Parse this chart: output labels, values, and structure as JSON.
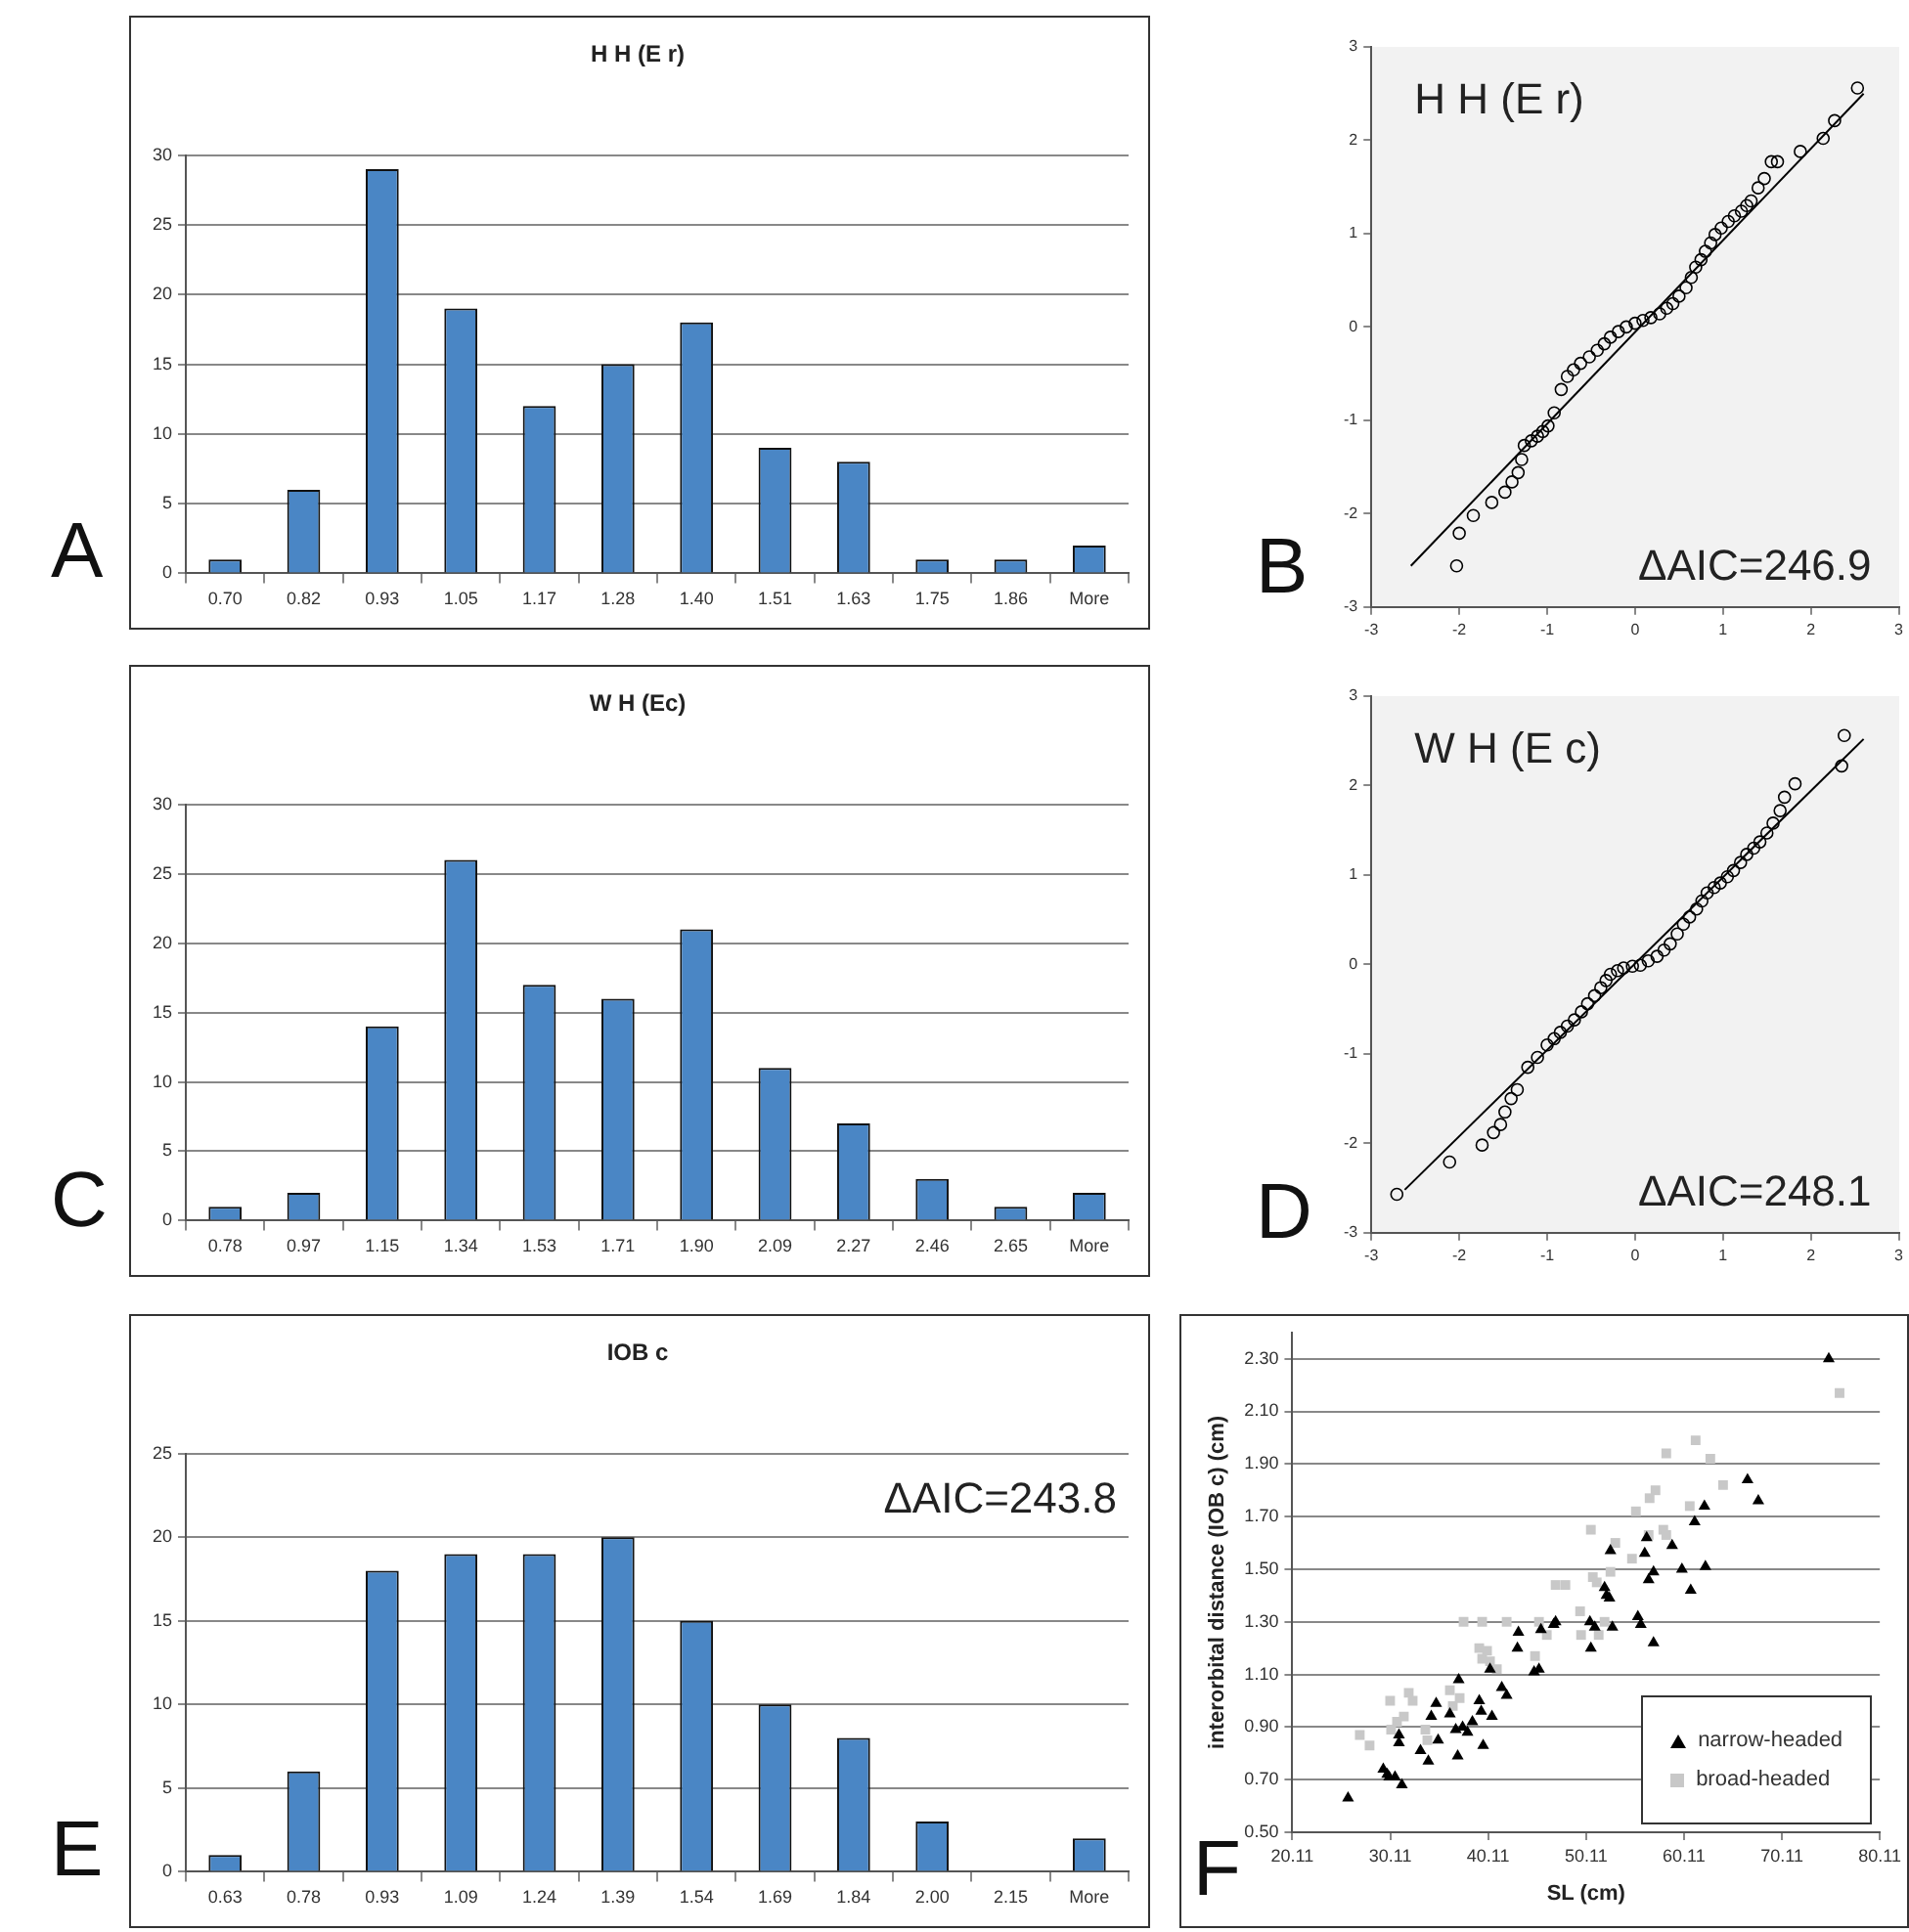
{
  "chart_data": [
    {
      "type": "bar",
      "title": "H H (E r)",
      "categories": [
        "0.70",
        "0.82",
        "0.93",
        "1.05",
        "1.17",
        "1.28",
        "1.40",
        "1.51",
        "1.63",
        "1.75",
        "1.86",
        "More"
      ],
      "values": [
        1,
        6,
        29,
        19,
        12,
        15,
        18,
        9,
        8,
        1,
        1,
        2
      ],
      "color": "#4a86c5",
      "ylim": [
        0,
        30
      ],
      "yticks": [
        0,
        5,
        10,
        15,
        20,
        25,
        30
      ],
      "grid": "y",
      "annotations": [
        "A"
      ]
    },
    {
      "type": "scatter",
      "title": "H H (E r)",
      "grid": false,
      "xlim": [
        -3,
        3
      ],
      "ylim": [
        -3,
        3
      ],
      "xticks": [
        -3,
        -2,
        -1,
        0,
        1,
        2,
        3
      ],
      "yticks": [
        -3,
        -2,
        -1,
        0,
        1,
        2,
        3
      ],
      "annotations": [
        "B",
        "ΔAIC=246.9"
      ],
      "series": [
        {
          "type": "scatter",
          "color": "#000000",
          "marker": "circle",
          "x": [
            -2.03,
            -2.0,
            -1.84,
            -1.63,
            -1.48,
            -1.4,
            -1.33,
            -1.29,
            -1.26,
            -1.18,
            -1.11,
            -1.05,
            -0.99,
            -0.92,
            -0.84,
            -0.77,
            -0.7,
            -0.62,
            -0.52,
            -0.43,
            -0.35,
            -0.28,
            -0.19,
            -0.1,
            0.0,
            0.09,
            0.18,
            0.28,
            0.36,
            0.43,
            0.5,
            0.58,
            0.64,
            0.69,
            0.75,
            0.8,
            0.86,
            0.91,
            0.98,
            1.06,
            1.13,
            1.21,
            1.27,
            1.32,
            1.4,
            1.47,
            1.55,
            1.62,
            1.88,
            2.14,
            2.27,
            2.53
          ],
          "values": [
            -2.56,
            -2.21,
            -2.02,
            -1.88,
            -1.77,
            -1.66,
            -1.56,
            -1.42,
            -1.27,
            -1.22,
            -1.17,
            -1.12,
            -1.06,
            -0.92,
            -0.67,
            -0.53,
            -0.46,
            -0.39,
            -0.32,
            -0.25,
            -0.18,
            -0.11,
            -0.05,
            0.0,
            0.04,
            0.07,
            0.1,
            0.14,
            0.2,
            0.25,
            0.33,
            0.42,
            0.53,
            0.64,
            0.72,
            0.81,
            0.9,
            0.99,
            1.06,
            1.13,
            1.19,
            1.24,
            1.3,
            1.35,
            1.49,
            1.59,
            1.77,
            1.77,
            1.88,
            2.02,
            2.21,
            2.56
          ]
        },
        {
          "type": "line",
          "color": "#000000",
          "marker": "none",
          "x": [
            -2.55,
            2.6
          ],
          "values": [
            -2.56,
            2.5
          ]
        }
      ]
    },
    {
      "type": "bar",
      "title": "W H (Ec)",
      "categories": [
        "0.78",
        "0.97",
        "1.15",
        "1.34",
        "1.53",
        "1.71",
        "1.90",
        "2.09",
        "2.27",
        "2.46",
        "2.65",
        "More"
      ],
      "values": [
        1,
        2,
        14,
        26,
        17,
        16,
        21,
        11,
        7,
        3,
        1,
        2
      ],
      "color": "#4a86c5",
      "ylim": [
        0,
        30
      ],
      "yticks": [
        0,
        5,
        10,
        15,
        20,
        25,
        30
      ],
      "grid": "y",
      "annotations": [
        "C"
      ]
    },
    {
      "type": "scatter",
      "title": "W H (E c)",
      "grid": false,
      "xlim": [
        -3,
        3
      ],
      "ylim": [
        -3,
        3
      ],
      "xticks": [
        -3,
        -2,
        -1,
        0,
        1,
        2,
        3
      ],
      "yticks": [
        -3,
        -2,
        -1,
        0,
        1,
        2,
        3
      ],
      "annotations": [
        "D",
        "ΔAIC=248.1"
      ],
      "series": [
        {
          "type": "scatter",
          "color": "#000000",
          "marker": "circle",
          "x": [
            -2.71,
            -2.11,
            -1.74,
            -1.61,
            -1.53,
            -1.48,
            -1.41,
            -1.34,
            -1.22,
            -1.11,
            -1.0,
            -0.92,
            -0.85,
            -0.77,
            -0.69,
            -0.61,
            -0.54,
            -0.46,
            -0.39,
            -0.33,
            -0.28,
            -0.2,
            -0.13,
            -0.03,
            0.06,
            0.15,
            0.25,
            0.33,
            0.4,
            0.48,
            0.55,
            0.62,
            0.7,
            0.76,
            0.82,
            0.9,
            0.97,
            1.05,
            1.12,
            1.2,
            1.27,
            1.35,
            1.42,
            1.5,
            1.57,
            1.65,
            1.7,
            1.82,
            2.35,
            2.38
          ],
          "values": [
            -2.57,
            -2.21,
            -2.02,
            -1.88,
            -1.79,
            -1.65,
            -1.5,
            -1.4,
            -1.15,
            -1.04,
            -0.9,
            -0.83,
            -0.76,
            -0.69,
            -0.62,
            -0.53,
            -0.44,
            -0.35,
            -0.26,
            -0.18,
            -0.11,
            -0.07,
            -0.04,
            -0.02,
            -0.01,
            0.04,
            0.09,
            0.16,
            0.23,
            0.34,
            0.45,
            0.53,
            0.62,
            0.71,
            0.8,
            0.86,
            0.91,
            0.98,
            1.05,
            1.14,
            1.23,
            1.3,
            1.37,
            1.47,
            1.58,
            1.72,
            1.87,
            2.02,
            2.22,
            2.56
          ]
        },
        {
          "type": "line",
          "color": "#000000",
          "marker": "none",
          "x": [
            -2.62,
            2.6
          ],
          "values": [
            -2.52,
            2.52
          ]
        }
      ]
    },
    {
      "type": "bar",
      "title": "IOB c",
      "categories": [
        "0.63",
        "0.78",
        "0.93",
        "1.09",
        "1.24",
        "1.39",
        "1.54",
        "1.69",
        "1.84",
        "2.00",
        "2.15",
        "More"
      ],
      "values": [
        1,
        6,
        18,
        19,
        19,
        20,
        15,
        10,
        8,
        3,
        0,
        2
      ],
      "color": "#4a86c5",
      "ylim": [
        0,
        25
      ],
      "yticks": [
        0,
        5,
        10,
        15,
        20,
        25
      ],
      "grid": "y",
      "annotations": [
        "E",
        "ΔAIC=243.8"
      ]
    },
    {
      "type": "scatter",
      "xlabel": "SL (cm)",
      "ylabel": "interorbital distance (IOB c) (cm)",
      "grid": "y",
      "legend": "bottom right",
      "xlim": [
        20.11,
        80.11
      ],
      "ylim": [
        0.5,
        2.4
      ],
      "xticks": [
        20.11,
        30.11,
        40.11,
        50.11,
        60.11,
        70.11,
        80.11
      ],
      "yticks": [
        {
          "value": 0.5,
          "label": "0.50"
        },
        {
          "value": 0.7,
          "label": "0.70"
        },
        {
          "value": 0.9,
          "label": "0.90"
        },
        {
          "value": 1.1,
          "label": "1.10"
        },
        {
          "value": 1.3,
          "label": "1.30"
        },
        {
          "value": 1.5,
          "label": "1.50"
        },
        {
          "value": 1.7,
          "label": "1.70"
        },
        {
          "value": 1.9,
          "label": "1.90"
        },
        {
          "value": 2.1,
          "label": "2.10"
        },
        {
          "value": 2.3,
          "label": "2.30"
        }
      ],
      "annotations": [
        "F"
      ],
      "series": [
        {
          "type": "scatter",
          "name": "narrow-headed",
          "color": "#000000",
          "marker": "triangle",
          "x": [
            25.8,
            29.4,
            29.8,
            30.0,
            30.6,
            31.3,
            31.0,
            31.0,
            33.2,
            34.0,
            34.3,
            34.8,
            35.0,
            36.2,
            36.8,
            37.0,
            37.1,
            37.5,
            38.0,
            38.5,
            39.2,
            39.4,
            39.6,
            40.5,
            40.3,
            41.5,
            42.0,
            43.1,
            43.2,
            44.8,
            45.3,
            45.5,
            46.8,
            47.0,
            50.5,
            50.6,
            51.0,
            52.0,
            52.2,
            52.5,
            52.6,
            52.8,
            55.4,
            55.7,
            56.1,
            56.3,
            56.5,
            57.0,
            57.0,
            58.9,
            59.9,
            60.8,
            61.2,
            62.2,
            62.3,
            66.6,
            67.7,
            74.9
          ],
          "values": [
            0.63,
            0.74,
            0.72,
            0.71,
            0.71,
            0.68,
            0.84,
            0.87,
            0.81,
            0.77,
            0.94,
            0.99,
            0.85,
            0.95,
            0.89,
            0.79,
            1.08,
            0.9,
            0.88,
            0.92,
            1.0,
            0.96,
            0.83,
            0.94,
            1.12,
            1.05,
            1.02,
            1.2,
            1.26,
            1.11,
            1.12,
            1.27,
            1.29,
            1.3,
            1.3,
            1.2,
            1.28,
            1.43,
            1.4,
            1.39,
            1.57,
            1.28,
            1.32,
            1.29,
            1.56,
            1.62,
            1.46,
            1.49,
            1.22,
            1.59,
            1.5,
            1.42,
            1.68,
            1.74,
            1.51,
            1.84,
            1.76,
            2.3
          ]
        },
        {
          "type": "scatter",
          "name": "broad-headed",
          "color": "#c8c8c8",
          "marker": "square",
          "x": [
            27.0,
            28.0,
            30.1,
            30.2,
            30.8,
            31.5,
            32.0,
            32.4,
            33.7,
            33.9,
            36.2,
            36.5,
            37.2,
            37.6,
            39.5,
            39.2,
            39.5,
            40.0,
            40.3,
            41.0,
            42.0,
            44.9,
            45.3,
            46.1,
            47.0,
            48.0,
            49.5,
            49.6,
            50.6,
            50.8,
            51.2,
            51.4,
            52.0,
            52.6,
            53.1,
            54.8,
            55.2,
            56.6,
            57.2,
            56.5,
            58.0,
            58.3,
            58.3,
            60.7,
            61.3,
            62.8,
            64.1,
            76.0
          ],
          "values": [
            0.87,
            0.83,
            1.0,
            0.89,
            0.92,
            0.94,
            1.03,
            1.0,
            0.89,
            0.85,
            1.04,
            0.98,
            1.01,
            1.3,
            1.3,
            1.2,
            1.16,
            1.19,
            1.15,
            1.12,
            1.3,
            1.17,
            1.3,
            1.25,
            1.44,
            1.44,
            1.34,
            1.25,
            1.65,
            1.47,
            1.45,
            1.25,
            1.3,
            1.49,
            1.6,
            1.54,
            1.72,
            1.77,
            1.8,
            1.63,
            1.65,
            1.63,
            1.94,
            1.74,
            1.99,
            1.92,
            1.82,
            2.17
          ]
        }
      ]
    }
  ]
}
